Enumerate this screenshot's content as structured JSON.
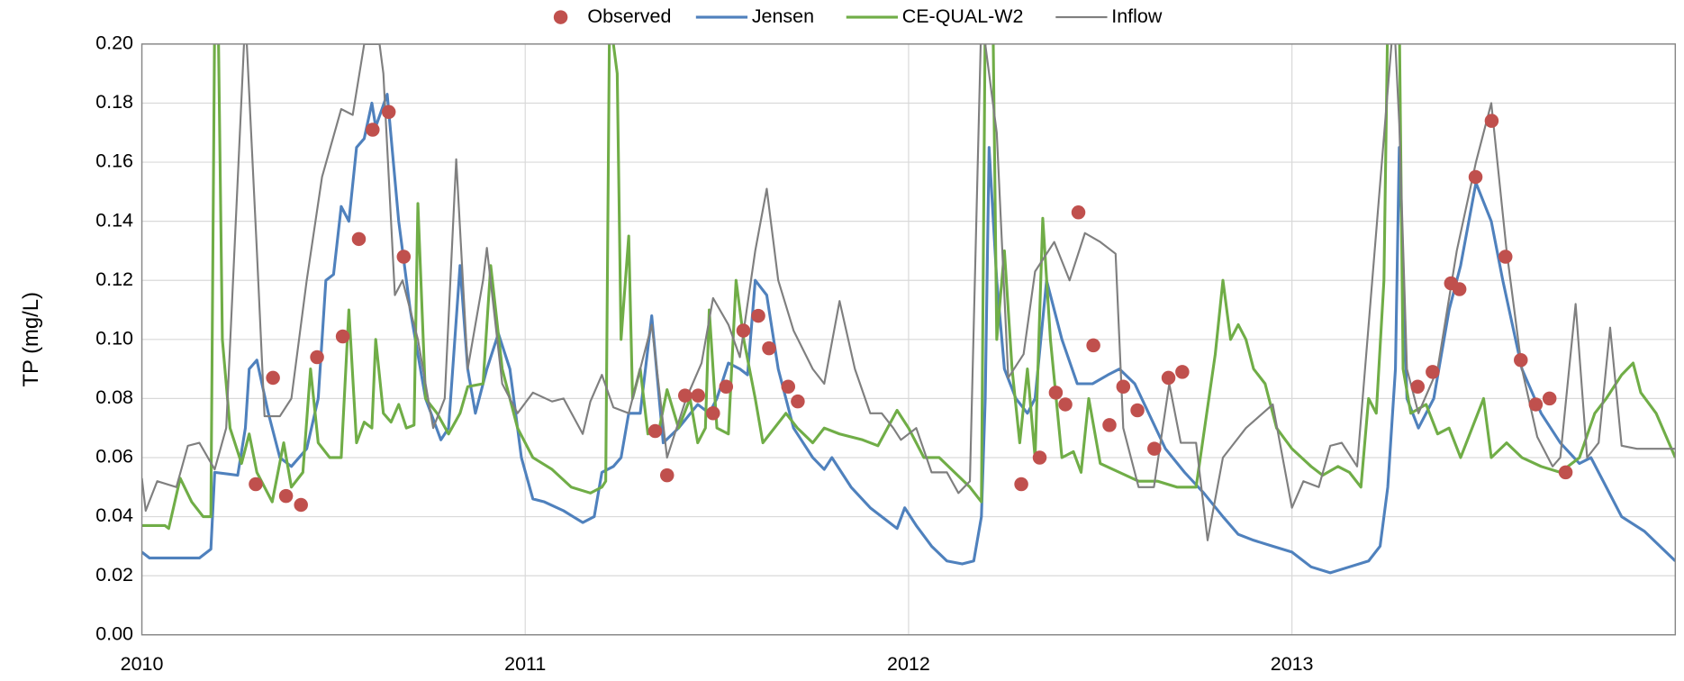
{
  "chart_data": {
    "type": "line",
    "y_label": "TP (mg/L)",
    "xlim": [
      2010,
      2014
    ],
    "xticks": [
      2010,
      2011,
      2012,
      2013
    ],
    "ylim": [
      0,
      0.2
    ],
    "yticks": [
      {
        "value": 0,
        "label": "0.00"
      },
      {
        "value": 0.02,
        "label": "0.02"
      },
      {
        "value": 0.04,
        "label": "0.04"
      },
      {
        "value": 0.06,
        "label": "0.06"
      },
      {
        "value": 0.08,
        "label": "0.08"
      },
      {
        "value": 0.1,
        "label": "0.10"
      },
      {
        "value": 0.12,
        "label": "0.12"
      },
      {
        "value": 0.14,
        "label": "0.14"
      },
      {
        "value": 0.16,
        "label": "0.16"
      },
      {
        "value": 0.18,
        "label": "0.18"
      },
      {
        "value": 0.2,
        "label": "0.20"
      }
    ],
    "grid": true,
    "legend": "top",
    "series": [
      {
        "name": "Observed",
        "color": "#c0504d",
        "style": "markers",
        "x": [
          2010.297,
          2010.342,
          2010.376,
          2010.415,
          2010.457,
          2010.524,
          2010.566,
          2010.602,
          2010.644,
          2010.683,
          2011.339,
          2011.37,
          2011.417,
          2011.451,
          2011.49,
          2011.524,
          2011.569,
          2011.608,
          2011.636,
          2011.686,
          2011.711,
          2012.294,
          2012.342,
          2012.384,
          2012.409,
          2012.443,
          2012.482,
          2012.524,
          2012.56,
          2012.597,
          2012.641,
          2012.678,
          2012.714,
          2013.328,
          2013.367,
          2013.415,
          2013.437,
          2013.479,
          2013.521,
          2013.557,
          2013.597,
          2013.636,
          2013.672,
          2013.714
        ],
        "values": [
          0.051,
          0.087,
          0.047,
          0.044,
          0.094,
          0.101,
          0.134,
          0.171,
          0.177,
          0.128,
          0.069,
          0.054,
          0.081,
          0.081,
          0.075,
          0.084,
          0.103,
          0.108,
          0.097,
          0.084,
          0.079,
          0.051,
          0.06,
          0.082,
          0.078,
          0.143,
          0.098,
          0.071,
          0.084,
          0.076,
          0.063,
          0.087,
          0.089,
          0.084,
          0.089,
          0.119,
          0.117,
          0.155,
          0.174,
          0.128,
          0.093,
          0.078,
          0.08,
          0.055
        ]
      },
      {
        "name": "Jensen",
        "color": "#4f81bd",
        "style": "line",
        "x": [
          2010,
          2010.02,
          2010.1,
          2010.15,
          2010.18,
          2010.19,
          2010.25,
          2010.27,
          2010.28,
          2010.3,
          2010.33,
          2010.36,
          2010.39,
          2010.43,
          2010.46,
          2010.48,
          2010.5,
          2010.52,
          2010.54,
          2010.56,
          2010.58,
          2010.6,
          2010.61,
          2010.64,
          2010.67,
          2010.7,
          2010.74,
          2010.78,
          2010.8,
          2010.83,
          2010.85,
          2010.87,
          2010.9,
          2010.93,
          2010.96,
          2010.99,
          2011.02,
          2011.05,
          2011.1,
          2011.15,
          2011.18,
          2011.2,
          2011.23,
          2011.25,
          2011.27,
          2011.3,
          2011.33,
          2011.36,
          2011.4,
          2011.45,
          2011.48,
          2011.5,
          2011.53,
          2011.56,
          2011.58,
          2011.6,
          2011.63,
          2011.66,
          2011.7,
          2011.75,
          2011.78,
          2011.8,
          2011.85,
          2011.9,
          2011.95,
          2011.97,
          2011.99,
          2012.02,
          2012.06,
          2012.1,
          2012.14,
          2012.17,
          2012.19,
          2012.2,
          2012.21,
          2012.23,
          2012.25,
          2012.28,
          2012.31,
          2012.33,
          2012.36,
          2012.4,
          2012.44,
          2012.48,
          2012.52,
          2012.55,
          2012.59,
          2012.63,
          2012.67,
          2012.72,
          2012.77,
          2012.82,
          2012.86,
          2012.9,
          2012.95,
          2013,
          2013.05,
          2013.1,
          2013.15,
          2013.2,
          2013.23,
          2013.25,
          2013.27,
          2013.28,
          2013.3,
          2013.33,
          2013.37,
          2013.41,
          2013.44,
          2013.48,
          2013.52,
          2013.55,
          2013.6,
          2013.65,
          2013.7,
          2013.75,
          2013.78,
          2013.82,
          2013.86,
          2013.92,
          2013.96,
          2014
        ],
        "values": [
          0.028,
          0.026,
          0.026,
          0.026,
          0.029,
          0.055,
          0.054,
          0.07,
          0.09,
          0.093,
          0.075,
          0.06,
          0.057,
          0.063,
          0.08,
          0.12,
          0.122,
          0.145,
          0.14,
          0.165,
          0.168,
          0.18,
          0.172,
          0.183,
          0.14,
          0.11,
          0.08,
          0.066,
          0.07,
          0.125,
          0.09,
          0.075,
          0.09,
          0.102,
          0.09,
          0.06,
          0.046,
          0.045,
          0.042,
          0.038,
          0.04,
          0.055,
          0.057,
          0.06,
          0.075,
          0.075,
          0.108,
          0.065,
          0.07,
          0.078,
          0.075,
          0.08,
          0.092,
          0.09,
          0.088,
          0.12,
          0.115,
          0.09,
          0.07,
          0.06,
          0.056,
          0.06,
          0.05,
          0.043,
          0.038,
          0.036,
          0.043,
          0.037,
          0.03,
          0.025,
          0.024,
          0.025,
          0.04,
          0.08,
          0.165,
          0.12,
          0.09,
          0.08,
          0.075,
          0.08,
          0.12,
          0.1,
          0.085,
          0.085,
          0.088,
          0.09,
          0.085,
          0.074,
          0.063,
          0.055,
          0.048,
          0.04,
          0.034,
          0.032,
          0.03,
          0.028,
          0.023,
          0.021,
          0.023,
          0.025,
          0.03,
          0.05,
          0.09,
          0.165,
          0.08,
          0.07,
          0.08,
          0.11,
          0.125,
          0.153,
          0.14,
          0.12,
          0.09,
          0.075,
          0.065,
          0.058,
          0.06,
          0.05,
          0.04,
          0.035,
          0.03,
          0.025
        ]
      },
      {
        "name": "CE-QUAL-W2",
        "color": "#70ad47",
        "style": "line",
        "x": [
          2010,
          2010.06,
          2010.07,
          2010.1,
          2010.13,
          2010.16,
          2010.18,
          2010.19,
          2010.2,
          2010.21,
          2010.23,
          2010.26,
          2010.28,
          2010.3,
          2010.34,
          2010.37,
          2010.39,
          2010.42,
          2010.44,
          2010.46,
          2010.49,
          2010.52,
          2010.54,
          2010.56,
          2010.58,
          2010.6,
          2010.61,
          2010.63,
          2010.65,
          2010.67,
          2010.69,
          2010.71,
          2010.72,
          2010.74,
          2010.77,
          2010.8,
          2010.83,
          2010.85,
          2010.89,
          2010.91,
          2010.94,
          2010.98,
          2011.02,
          2011.07,
          2011.12,
          2011.17,
          2011.2,
          2011.21,
          2011.22,
          2011.24,
          2011.25,
          2011.27,
          2011.28,
          2011.3,
          2011.32,
          2011.35,
          2011.37,
          2011.4,
          2011.43,
          2011.45,
          2011.47,
          2011.48,
          2011.5,
          2011.53,
          2011.55,
          2011.57,
          2011.6,
          2011.62,
          2011.65,
          2011.68,
          2011.71,
          2011.75,
          2011.78,
          2011.82,
          2011.88,
          2011.92,
          2011.97,
          2012,
          2012.04,
          2012.08,
          2012.12,
          2012.16,
          2012.19,
          2012.2,
          2012.22,
          2012.23,
          2012.25,
          2012.27,
          2012.29,
          2012.31,
          2012.33,
          2012.35,
          2012.37,
          2012.4,
          2012.43,
          2012.45,
          2012.47,
          2012.5,
          2012.55,
          2012.6,
          2012.65,
          2012.7,
          2012.75,
          2012.8,
          2012.82,
          2012.84,
          2012.86,
          2012.88,
          2012.9,
          2012.93,
          2012.96,
          2013,
          2013.05,
          2013.08,
          2013.12,
          2013.15,
          2013.18,
          2013.2,
          2013.22,
          2013.24,
          2013.25,
          2013.28,
          2013.29,
          2013.31,
          2013.35,
          2013.38,
          2013.41,
          2013.44,
          2013.47,
          2013.5,
          2013.52,
          2013.56,
          2013.6,
          2013.65,
          2013.7,
          2013.75,
          2013.79,
          2013.82,
          2013.86,
          2013.89,
          2013.91,
          2013.95,
          2014
        ],
        "values": [
          0.037,
          0.037,
          0.036,
          0.053,
          0.045,
          0.04,
          0.04,
          0.21,
          0.2,
          0.1,
          0.07,
          0.058,
          0.068,
          0.055,
          0.045,
          0.065,
          0.05,
          0.055,
          0.09,
          0.065,
          0.06,
          0.06,
          0.11,
          0.065,
          0.072,
          0.07,
          0.1,
          0.075,
          0.072,
          0.078,
          0.07,
          0.071,
          0.146,
          0.08,
          0.075,
          0.068,
          0.075,
          0.084,
          0.085,
          0.125,
          0.09,
          0.07,
          0.06,
          0.056,
          0.05,
          0.048,
          0.05,
          0.052,
          0.21,
          0.19,
          0.1,
          0.135,
          0.08,
          0.09,
          0.068,
          0.07,
          0.083,
          0.07,
          0.08,
          0.065,
          0.07,
          0.11,
          0.07,
          0.068,
          0.12,
          0.1,
          0.08,
          0.065,
          0.07,
          0.075,
          0.07,
          0.065,
          0.07,
          0.068,
          0.066,
          0.064,
          0.076,
          0.07,
          0.06,
          0.06,
          0.055,
          0.05,
          0.045,
          0.21,
          0.21,
          0.1,
          0.13,
          0.09,
          0.065,
          0.09,
          0.06,
          0.141,
          0.1,
          0.06,
          0.062,
          0.055,
          0.08,
          0.058,
          0.055,
          0.052,
          0.052,
          0.05,
          0.05,
          0.095,
          0.12,
          0.1,
          0.105,
          0.1,
          0.09,
          0.085,
          0.07,
          0.063,
          0.057,
          0.054,
          0.057,
          0.055,
          0.05,
          0.08,
          0.075,
          0.12,
          0.21,
          0.21,
          0.09,
          0.075,
          0.078,
          0.068,
          0.07,
          0.06,
          0.07,
          0.08,
          0.06,
          0.065,
          0.06,
          0.057,
          0.055,
          0.06,
          0.075,
          0.08,
          0.088,
          0.092,
          0.082,
          0.075,
          0.06
        ]
      },
      {
        "name": "Inflow",
        "color": "#7f7f7f",
        "style": "line",
        "x": [
          2010,
          2010.01,
          2010.04,
          2010.09,
          2010.12,
          2010.15,
          2010.19,
          2010.22,
          2010.27,
          2010.3,
          2010.32,
          2010.36,
          2010.39,
          2010.43,
          2010.47,
          2010.52,
          2010.55,
          2010.58,
          2010.62,
          2010.63,
          2010.66,
          2010.68,
          2010.72,
          2010.76,
          2010.79,
          2010.82,
          2010.85,
          2010.89,
          2010.9,
          2010.94,
          2010.98,
          2011.02,
          2011.07,
          2011.1,
          2011.15,
          2011.17,
          2011.2,
          2011.23,
          2011.27,
          2011.3,
          2011.33,
          2011.37,
          2011.42,
          2011.46,
          2011.49,
          2011.53,
          2011.56,
          2011.6,
          2011.63,
          2011.66,
          2011.7,
          2011.75,
          2011.78,
          2011.82,
          2011.86,
          2011.9,
          2011.93,
          2011.96,
          2011.98,
          2012.02,
          2012.06,
          2012.1,
          2012.13,
          2012.16,
          2012.19,
          2012.23,
          2012.26,
          2012.3,
          2012.33,
          2012.38,
          2012.42,
          2012.46,
          2012.5,
          2012.54,
          2012.56,
          2012.6,
          2012.64,
          2012.68,
          2012.71,
          2012.75,
          2012.78,
          2012.82,
          2012.88,
          2012.95,
          2013,
          2013.03,
          2013.07,
          2013.1,
          2013.13,
          2013.17,
          2013.266,
          2013.28,
          2013.3,
          2013.33,
          2013.38,
          2013.43,
          2013.48,
          2013.52,
          2013.56,
          2013.6,
          2013.64,
          2013.68,
          2013.7,
          2013.74,
          2013.77,
          2013.8,
          2013.83,
          2013.86,
          2013.9,
          2014
        ],
        "values": [
          0.053,
          0.042,
          0.052,
          0.05,
          0.064,
          0.065,
          0.056,
          0.07,
          0.21,
          0.13,
          0.074,
          0.074,
          0.08,
          0.12,
          0.155,
          0.178,
          0.176,
          0.2,
          0.2,
          0.19,
          0.115,
          0.12,
          0.1,
          0.07,
          0.08,
          0.161,
          0.09,
          0.12,
          0.131,
          0.085,
          0.075,
          0.082,
          0.079,
          0.08,
          0.068,
          0.079,
          0.088,
          0.077,
          0.075,
          0.09,
          0.105,
          0.06,
          0.08,
          0.092,
          0.114,
          0.105,
          0.094,
          0.13,
          0.151,
          0.12,
          0.103,
          0.09,
          0.085,
          0.113,
          0.09,
          0.075,
          0.075,
          0.07,
          0.066,
          0.07,
          0.055,
          0.055,
          0.048,
          0.052,
          0.21,
          0.17,
          0.087,
          0.095,
          0.123,
          0.133,
          0.12,
          0.136,
          0.133,
          0.129,
          0.07,
          0.05,
          0.05,
          0.085,
          0.065,
          0.065,
          0.032,
          0.06,
          0.07,
          0.078,
          0.043,
          0.052,
          0.05,
          0.064,
          0.065,
          0.057,
          0.21,
          0.173,
          0.09,
          0.075,
          0.09,
          0.13,
          0.16,
          0.18,
          0.13,
          0.09,
          0.067,
          0.057,
          0.06,
          0.112,
          0.06,
          0.065,
          0.104,
          0.064,
          0.063,
          0.063
        ]
      }
    ]
  }
}
